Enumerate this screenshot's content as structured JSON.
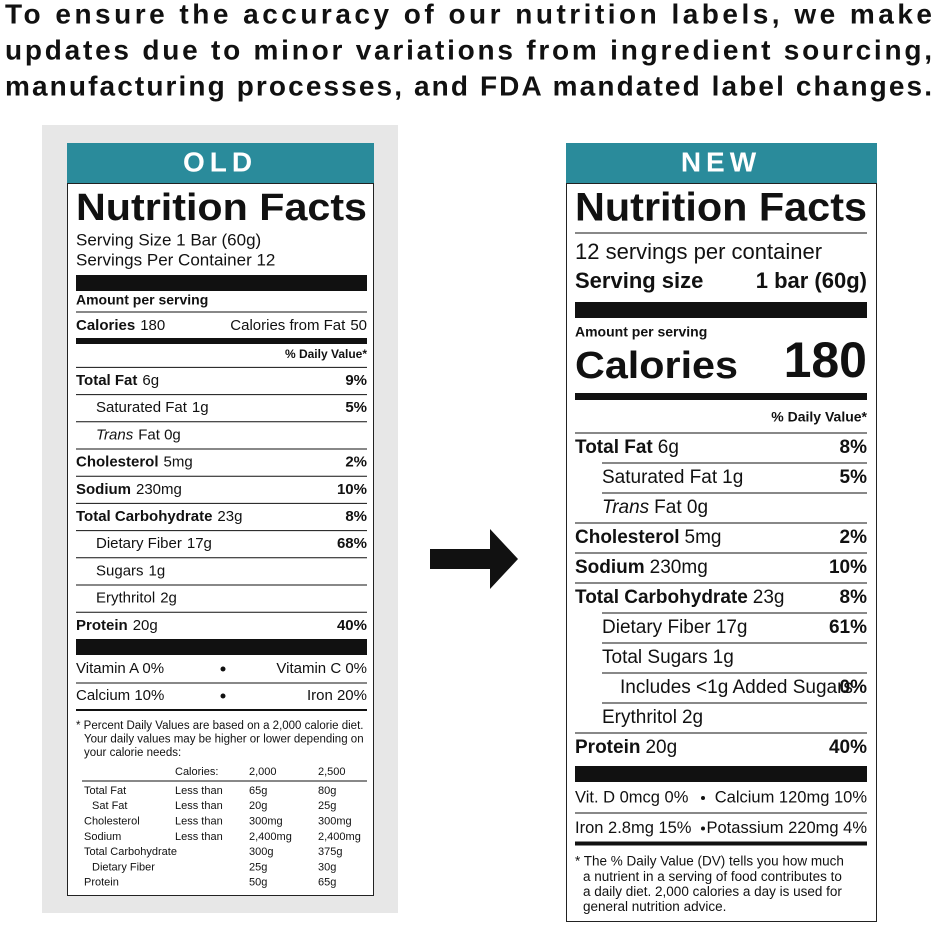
{
  "heading": [
    "To ensure the accuracy of our nutrition labels, we make",
    "updates due to minor variations from ingredient sourcing,",
    "manufacturing processes, and FDA mandated label changes."
  ],
  "old": {
    "tag": "OLD",
    "title": "Nutrition Facts",
    "serving": [
      "Serving Size 1 Bar (60g)",
      "Servings Per Container 12"
    ],
    "amount_per_serving": "Amount per serving",
    "calories": {
      "label": "Calories",
      "value": "180",
      "fat_label": "Calories from Fat",
      "fat_value": "50"
    },
    "dv_header": "% Daily Value*",
    "nutrients": [
      {
        "name": "Total Fat",
        "amount": "6g",
        "dv": "9%"
      },
      {
        "name": "Saturated Fat",
        "amount": "1g",
        "dv": "5%"
      },
      {
        "name": "Trans",
        "amount": "Fat 0g"
      },
      {
        "name": "Cholesterol",
        "amount": "5mg",
        "dv": "2%"
      },
      {
        "name": "Sodium",
        "amount": "230mg",
        "dv": "10%"
      },
      {
        "name": "Total Carbohydrate",
        "amount": "23g",
        "dv": "8%"
      },
      {
        "name": "Dietary Fiber",
        "amount": "17g",
        "dv": "68%"
      },
      {
        "name": "Sugars",
        "amount": "1g"
      },
      {
        "name": "Erythritol",
        "amount": "2g"
      },
      {
        "name": "Protein",
        "amount": "20g",
        "dv": "40%"
      }
    ],
    "vitamins": [
      [
        "Vitamin A 0%",
        "Vitamin C 0%"
      ],
      [
        "Calcium 10%",
        "Iron 20%"
      ]
    ],
    "footnote": [
      "* Percent Daily Values are based on a 2,000 calorie diet.",
      "Your daily values may be higher or lower depending on",
      "your calorie needs:"
    ],
    "dv_table": {
      "header": {
        "label": "Calories:",
        "values": [
          "2,000",
          "2,500"
        ]
      },
      "rows": [
        {
          "name": "Total Fat",
          "limit": "Less than",
          "values": [
            "65g",
            "80g"
          ]
        },
        {
          "name": "Sat Fat",
          "limit": "Less than",
          "values": [
            "20g",
            "25g"
          ]
        },
        {
          "name": "Cholesterol",
          "limit": "Less than",
          "values": [
            "300mg",
            "300mg"
          ]
        },
        {
          "name": "Sodium",
          "limit": "Less than",
          "values": [
            "2,400mg",
            "2,400mg"
          ]
        },
        {
          "name": "Total Carbohydrate",
          "values": [
            "300g",
            "375g"
          ]
        },
        {
          "name": "Dietary Fiber",
          "values": [
            "25g",
            "30g"
          ]
        },
        {
          "name": "Protein",
          "values": [
            "50g",
            "65g"
          ]
        }
      ]
    }
  },
  "new": {
    "tag": "NEW",
    "title": "Nutrition Facts",
    "servings_per_container": "12 servings per container",
    "serving_size": {
      "label": "Serving size",
      "value": "1 bar (60g)"
    },
    "amount_per_serving": "Amount per serving",
    "calories": {
      "label": "Calories",
      "value": "180"
    },
    "dv_header": "% Daily Value*",
    "nutrients": [
      {
        "name": "Total Fat",
        "amount": "6g",
        "dv": "8%"
      },
      {
        "name": "Saturated Fat",
        "amount": "1g",
        "dv": "5%"
      },
      {
        "name": "Trans",
        "amount": "Fat 0g"
      },
      {
        "name": "Cholesterol",
        "amount": "5mg",
        "dv": "2%"
      },
      {
        "name": "Sodium",
        "amount": "230mg",
        "dv": "10%"
      },
      {
        "name": "Total Carbohydrate",
        "amount": "23g",
        "dv": "8%"
      },
      {
        "name": "Dietary Fiber",
        "amount": "17g",
        "dv": "61%"
      },
      {
        "name": "Total Sugars",
        "amount": "1g"
      },
      {
        "name": "Includes <1g Added Sugars",
        "dv": "0%"
      },
      {
        "name": "Erythritol",
        "amount": "2g"
      },
      {
        "name": "Protein",
        "amount": "20g",
        "dv": "40%"
      }
    ],
    "vitamins": [
      [
        "Vit. D 0mcg 0%",
        "Calcium 120mg 10%"
      ],
      [
        "Iron 2.8mg 15%",
        "Potassium 220mg 4%"
      ]
    ],
    "footnote": [
      "* The % Daily Value (DV) tells you how much",
      "a nutrient in a serving of food contributes to",
      "a daily diet. 2,000 calories a day is used for",
      "general nutrition advice."
    ]
  }
}
